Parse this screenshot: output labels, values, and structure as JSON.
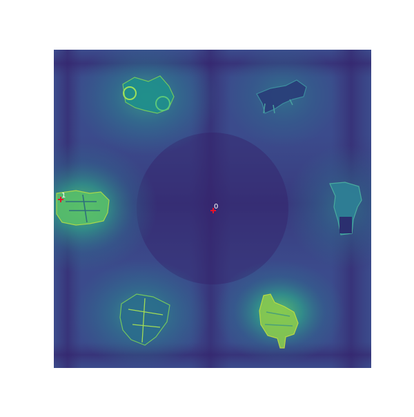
{
  "view": {
    "colormap": "viridis",
    "background_color": "#ffffff",
    "grid_color_low": "#44105a",
    "grid_color_mid": "#2e6f8e",
    "grid_color_high": "#6fd35a"
  },
  "objects": [
    {
      "name": "top-left-object",
      "icon": "motorcycle-shape",
      "glow": 0.55
    },
    {
      "name": "top-right-object",
      "icon": "quadruped-shape",
      "glow": 0.35
    },
    {
      "name": "middle-left-object",
      "icon": "vehicle-shape",
      "glow": 0.75
    },
    {
      "name": "middle-right-object",
      "icon": "standing-animal-shape",
      "glow": 0.45
    },
    {
      "name": "bottom-left-object",
      "icon": "machine-shape",
      "glow": 0.6
    },
    {
      "name": "bottom-right-object",
      "icon": "sheep-shape",
      "glow": 0.7
    }
  ],
  "markers": [
    {
      "label": "0",
      "color": "#e8102a",
      "target": "center"
    },
    {
      "label": "1",
      "color": "#e8102a",
      "target": "middle-left-object"
    }
  ]
}
